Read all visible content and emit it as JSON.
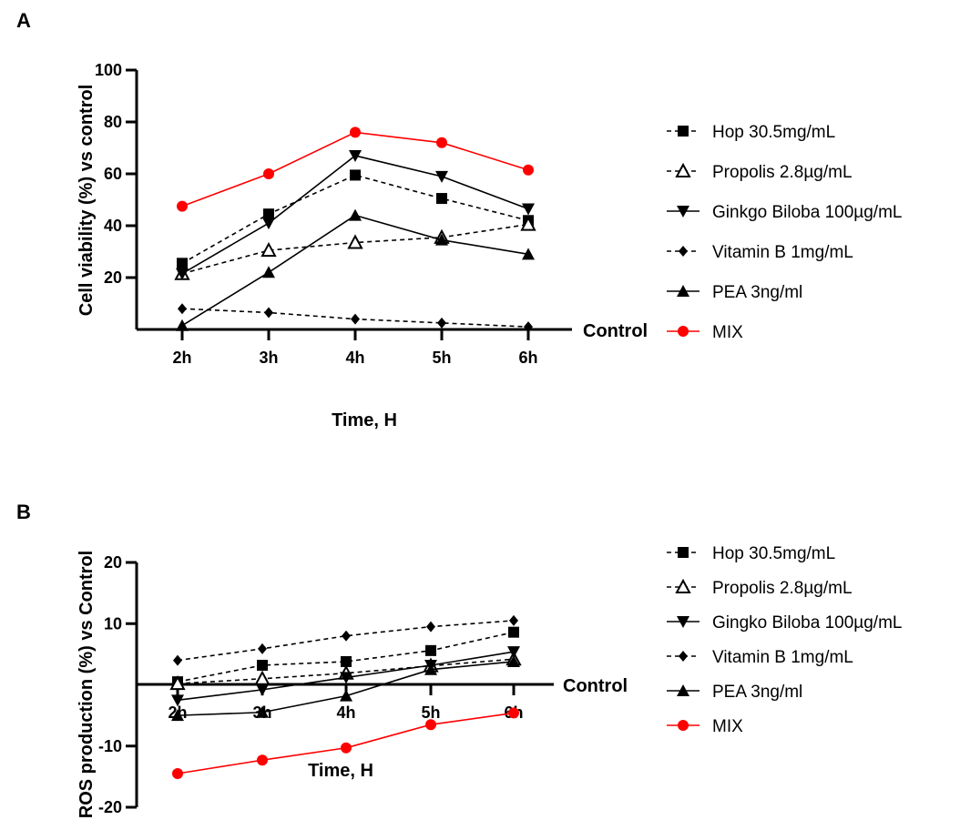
{
  "chart_data": [
    {
      "panel": "A",
      "type": "line",
      "ylabel": "Cell viability (%) vs control",
      "xlabel": "Time, H",
      "baseline_label": "Control",
      "categories": [
        "2h",
        "3h",
        "4h",
        "5h",
        "6h"
      ],
      "ylim": [
        0,
        100
      ],
      "yticks": [
        20,
        40,
        60,
        80,
        100
      ],
      "series": [
        {
          "name": "Hop 30.5mg/mL",
          "marker": "square",
          "dash": true,
          "color": "#000000",
          "values": [
            25.5,
            44.5,
            59.5,
            50.5,
            42
          ]
        },
        {
          "name": "Propolis 2.8µg/mL",
          "marker": "triangle-open",
          "dash": true,
          "color": "#000000",
          "values": [
            21.5,
            30.5,
            33.5,
            35.5,
            40.5
          ]
        },
        {
          "name": "Ginkgo Biloba 100µg/mL",
          "marker": "triangle-down",
          "dash": false,
          "color": "#000000",
          "values": [
            21.5,
            41,
            67,
            59,
            46.5
          ]
        },
        {
          "name": "Vitamin B 1mg/mL",
          "marker": "diamond",
          "dash": true,
          "color": "#000000",
          "values": [
            8,
            6.5,
            4,
            2.5,
            1
          ]
        },
        {
          "name": "PEA 3ng/ml",
          "marker": "triangle-up",
          "dash": false,
          "color": "#000000",
          "values": [
            1.5,
            22,
            44,
            34.5,
            29
          ]
        },
        {
          "name": "MIX",
          "marker": "circle",
          "dash": false,
          "color": "#ff0000",
          "values": [
            47.5,
            60,
            76,
            72,
            61.5
          ]
        }
      ]
    },
    {
      "panel": "B",
      "type": "line",
      "ylabel": "ROS production (%) vs Control",
      "xlabel": "Time, H",
      "baseline_label": "Control",
      "categories": [
        "2h",
        "3h",
        "4h",
        "5h",
        "6h"
      ],
      "ylim": [
        -20,
        20
      ],
      "yticks": [
        -20,
        -10,
        10,
        20
      ],
      "series": [
        {
          "name": "Hop 30.5mg/mL",
          "marker": "square",
          "dash": true,
          "color": "#000000",
          "values": [
            0.5,
            3.2,
            3.8,
            5.6,
            8.6
          ]
        },
        {
          "name": "Propolis  2.8µg/mL",
          "marker": "triangle-open",
          "dash": true,
          "color": "#000000",
          "values": [
            0.2,
            1,
            1.9,
            3.1,
            4.2
          ]
        },
        {
          "name": "Gingko Biloba 100µg/mL",
          "marker": "triangle-down",
          "dash": false,
          "color": "#000000",
          "values": [
            -2.5,
            -0.8,
            1.2,
            3.2,
            5.4
          ]
        },
        {
          "name": "Vitamin B 1mg/mL",
          "marker": "diamond",
          "dash": true,
          "color": "#000000",
          "values": [
            4,
            5.9,
            8,
            9.5,
            10.5
          ]
        },
        {
          "name": "PEA 3ng/ml",
          "marker": "triangle-up",
          "dash": false,
          "color": "#000000",
          "values": [
            -5,
            -4.5,
            -1.8,
            2.5,
            3.8
          ]
        },
        {
          "name": "MIX",
          "marker": "circle",
          "dash": false,
          "color": "#ff0000",
          "values": [
            -14.5,
            -12.3,
            -10.3,
            -6.5,
            -4.6
          ]
        }
      ]
    }
  ]
}
